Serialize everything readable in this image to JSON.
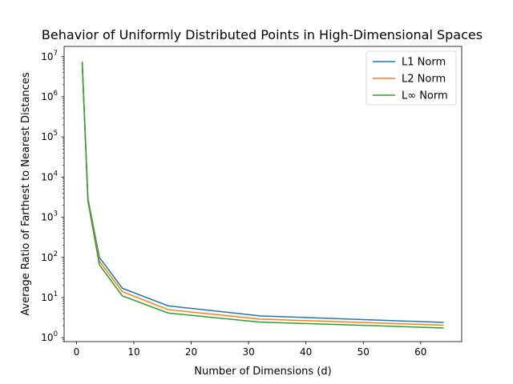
{
  "chart_data": {
    "type": "line",
    "title": "Behavior of Uniformly Distributed Points in High-Dimensional Spaces",
    "xlabel": "Number of Dimensions (d)",
    "ylabel": "Average Ratio of Farthest to Nearest Distances",
    "x": [
      1,
      2,
      4,
      8,
      16,
      32,
      64
    ],
    "series": [
      {
        "name": "L1 Norm",
        "color": "#1f77b4",
        "values": [
          7000000,
          3000,
          100,
          17,
          6.2,
          3.5,
          2.4
        ]
      },
      {
        "name": "L2 Norm",
        "color": "#ff7f0e",
        "values": [
          7200000,
          2800,
          80,
          14,
          5.0,
          2.9,
          2.05
        ]
      },
      {
        "name": "L∞ Norm",
        "color": "#2ca02c",
        "values": [
          7500000,
          2500,
          65,
          11,
          4.1,
          2.45,
          1.75
        ]
      }
    ],
    "xlim": [
      -2.15,
      67.15
    ],
    "xticks": [
      0,
      10,
      20,
      30,
      40,
      50,
      60
    ],
    "xtick_labels": [
      "0",
      "10",
      "20",
      "30",
      "40",
      "50",
      "60"
    ],
    "yscale": "log",
    "ylim": [
      0.8,
      18000000
    ],
    "ytick_exponents": [
      0,
      1,
      2,
      3,
      4,
      5,
      6,
      7
    ],
    "ytick_base": "10",
    "legend_position": "top-right",
    "grid": false
  }
}
